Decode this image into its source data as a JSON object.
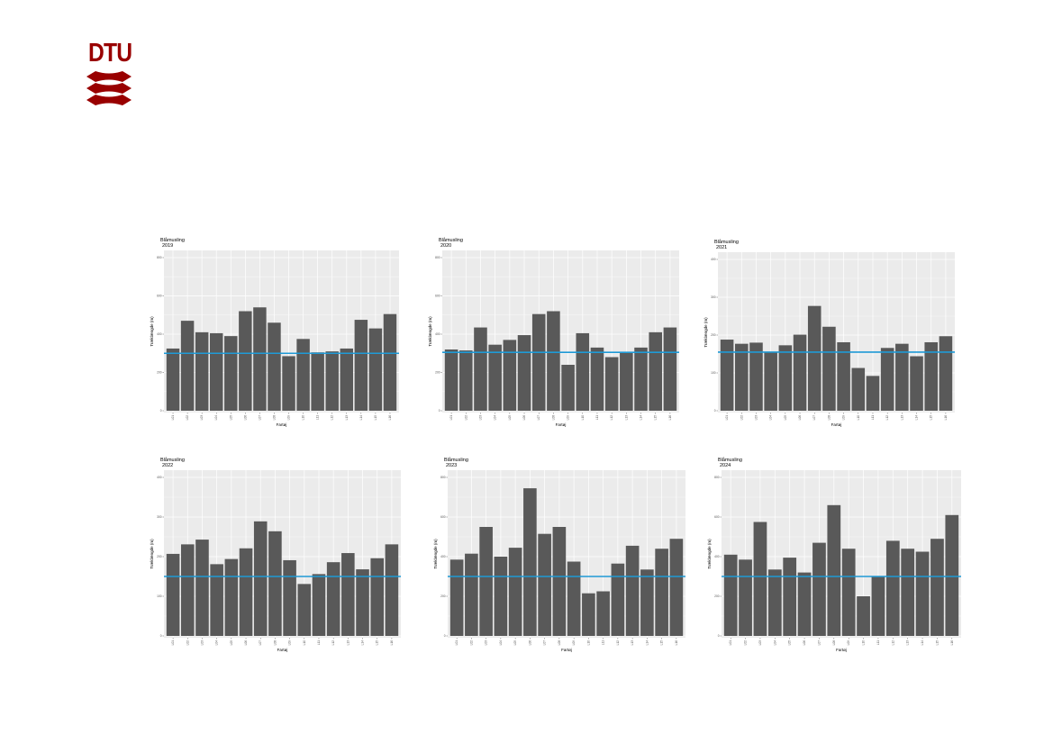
{
  "logo": {
    "text": "DTU",
    "color": "#990000"
  },
  "style": {
    "panel_bg": "#ebebeb",
    "grid_color": "#ffffff",
    "bar_color": "#595959",
    "line_color": "#1f9ad6"
  },
  "chart_data": [
    {
      "type": "bar",
      "title": "Blåmusling\n2019",
      "xlabel": "Fartøj",
      "ylabel": "Træklængde (m)",
      "ylim": [
        0,
        800
      ],
      "yticks": [
        "0",
        "200",
        "400",
        "600",
        "800"
      ],
      "categories": [
        "L01",
        "L02",
        "L03",
        "L04",
        "L05",
        "L06",
        "L07",
        "L08",
        "L09",
        "L10",
        "L11",
        "L12",
        "L13",
        "L14",
        "L15",
        "L16"
      ],
      "values": [
        325,
        470,
        410,
        405,
        390,
        520,
        540,
        460,
        285,
        375,
        305,
        310,
        325,
        475,
        430,
        505
      ],
      "hline": 300
    },
    {
      "type": "bar",
      "title": "Blåmusling\n2020",
      "xlabel": "Fartøj",
      "ylabel": "Træklængde (m)",
      "ylim": [
        0,
        800
      ],
      "yticks": [
        "0",
        "200",
        "400",
        "600",
        "800"
      ],
      "categories": [
        "L01",
        "L02",
        "L03",
        "L04",
        "L05",
        "L06",
        "L07",
        "L08",
        "L09",
        "L10",
        "L11",
        "L12",
        "L13",
        "L14",
        "L15",
        "L16"
      ],
      "values": [
        320,
        315,
        435,
        345,
        370,
        395,
        505,
        520,
        240,
        405,
        330,
        280,
        305,
        330,
        410,
        435
      ],
      "hline": 305
    },
    {
      "type": "bar",
      "title": "Blåmusling\n2021",
      "xlabel": "Fartøj",
      "ylabel": "Træklængde (m)",
      "ylim": [
        0,
        400
      ],
      "yticks": [
        "0",
        "100",
        "200",
        "300",
        "400"
      ],
      "categories": [
        "L01",
        "L02",
        "L03",
        "L04",
        "L05",
        "L06",
        "L07",
        "L08",
        "L09",
        "L10",
        "L11",
        "L12",
        "L13",
        "L14",
        "L15",
        "L16"
      ],
      "values": [
        188,
        177,
        180,
        154,
        173,
        201,
        277,
        222,
        181,
        113,
        92,
        166,
        177,
        144,
        181,
        197
      ],
      "hline": 155
    },
    {
      "type": "bar",
      "title": "Blåmusling\n2022",
      "xlabel": "Fartøj",
      "ylabel": "Træklængde (m)",
      "ylim": [
        0,
        400
      ],
      "yticks": [
        "0",
        "100",
        "200",
        "300",
        "400"
      ],
      "categories": [
        "L01",
        "L02",
        "L03",
        "L04",
        "L05",
        "L06",
        "L07",
        "L08",
        "L09",
        "L10",
        "L11",
        "L12",
        "L13",
        "L14",
        "L15",
        "L16"
      ],
      "values": [
        207,
        231,
        243,
        181,
        194,
        221,
        289,
        264,
        191,
        131,
        156,
        186,
        209,
        168,
        196,
        231
      ],
      "hline": 150
    },
    {
      "type": "bar",
      "title": "Blåmusling\n2023",
      "xlabel": "Fartøj",
      "ylabel": "Træklængde (m)",
      "ylim": [
        0,
        800
      ],
      "yticks": [
        "0",
        "200",
        "400",
        "600",
        "800"
      ],
      "categories": [
        "L01",
        "L02",
        "L03",
        "L04",
        "L05",
        "L06",
        "L07",
        "L08",
        "L09",
        "L10",
        "L11",
        "L12",
        "L13",
        "L14",
        "L15",
        "L16"
      ],
      "values": [
        385,
        415,
        550,
        400,
        445,
        745,
        515,
        550,
        375,
        215,
        225,
        365,
        455,
        335,
        440,
        490
      ],
      "hline": 300
    },
    {
      "type": "bar",
      "title": "Blåmusling\n2024",
      "xlabel": "Fartøj",
      "ylabel": "Træklængde (m)",
      "ylim": [
        0,
        800
      ],
      "yticks": [
        "0",
        "200",
        "400",
        "600",
        "800"
      ],
      "categories": [
        "L01",
        "L02",
        "L03",
        "L04",
        "L05",
        "L06",
        "L07",
        "L08",
        "L09",
        "L10",
        "L11",
        "L12",
        "L13",
        "L14",
        "L15",
        "L16"
      ],
      "values": [
        410,
        385,
        575,
        335,
        395,
        320,
        470,
        660,
        440,
        200,
        300,
        480,
        440,
        425,
        490,
        610
      ],
      "hline": 300
    }
  ]
}
